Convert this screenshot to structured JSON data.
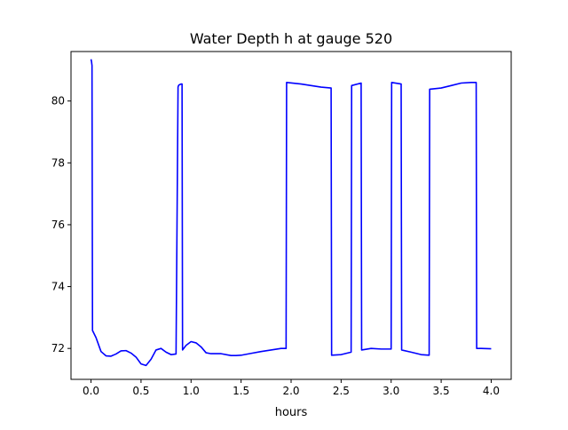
{
  "chart_data": {
    "type": "line",
    "title": "Water Depth h at gauge 520",
    "xlabel": "hours",
    "ylabel": "",
    "xlim": [
      -0.2,
      4.2
    ],
    "ylim": [
      71.0,
      81.6
    ],
    "xticks": [
      0.0,
      0.5,
      1.0,
      1.5,
      2.0,
      2.5,
      3.0,
      3.5,
      4.0
    ],
    "xtick_labels": [
      "0.0",
      "0.5",
      "1.0",
      "1.5",
      "2.0",
      "2.5",
      "3.0",
      "3.5",
      "4.0"
    ],
    "yticks": [
      72,
      74,
      76,
      78,
      80
    ],
    "ytick_labels": [
      "72",
      "74",
      "76",
      "78",
      "80"
    ],
    "grid": false,
    "series": [
      {
        "color": "#0000ff",
        "x": [
          0.0,
          0.005,
          0.01,
          0.015,
          0.05,
          0.1,
          0.15,
          0.2,
          0.25,
          0.3,
          0.35,
          0.4,
          0.45,
          0.5,
          0.55,
          0.6,
          0.65,
          0.7,
          0.75,
          0.8,
          0.85,
          0.87,
          0.875,
          0.88,
          0.9,
          0.91,
          0.915,
          0.95,
          1.0,
          1.05,
          1.1,
          1.15,
          1.2,
          1.25,
          1.3,
          1.4,
          1.45,
          1.5,
          1.6,
          1.7,
          1.8,
          1.9,
          1.95,
          1.955,
          2.1,
          2.3,
          2.4,
          2.405,
          2.5,
          2.6,
          2.605,
          2.7,
          2.705,
          2.8,
          2.9,
          3.0,
          3.005,
          3.1,
          3.105,
          3.2,
          3.3,
          3.38,
          3.385,
          3.5,
          3.6,
          3.7,
          3.8,
          3.85,
          3.855,
          3.9,
          4.0
        ],
        "y": [
          81.35,
          81.28,
          81.15,
          72.58,
          72.35,
          71.9,
          71.76,
          71.75,
          71.82,
          71.92,
          71.93,
          71.85,
          71.72,
          71.5,
          71.45,
          71.65,
          71.95,
          72.0,
          71.88,
          71.8,
          71.82,
          80.45,
          80.5,
          80.52,
          80.55,
          80.55,
          71.95,
          72.1,
          72.22,
          72.18,
          72.05,
          71.86,
          71.83,
          71.83,
          71.83,
          71.77,
          71.77,
          71.78,
          71.84,
          71.9,
          71.95,
          72.0,
          72.0,
          80.6,
          80.55,
          80.45,
          80.42,
          71.78,
          71.8,
          71.88,
          80.5,
          80.58,
          71.95,
          72.0,
          71.98,
          71.98,
          80.6,
          80.55,
          71.95,
          71.88,
          71.8,
          71.78,
          80.38,
          80.42,
          80.5,
          80.58,
          80.6,
          80.6,
          72.0,
          72.0,
          71.99
        ]
      }
    ]
  }
}
